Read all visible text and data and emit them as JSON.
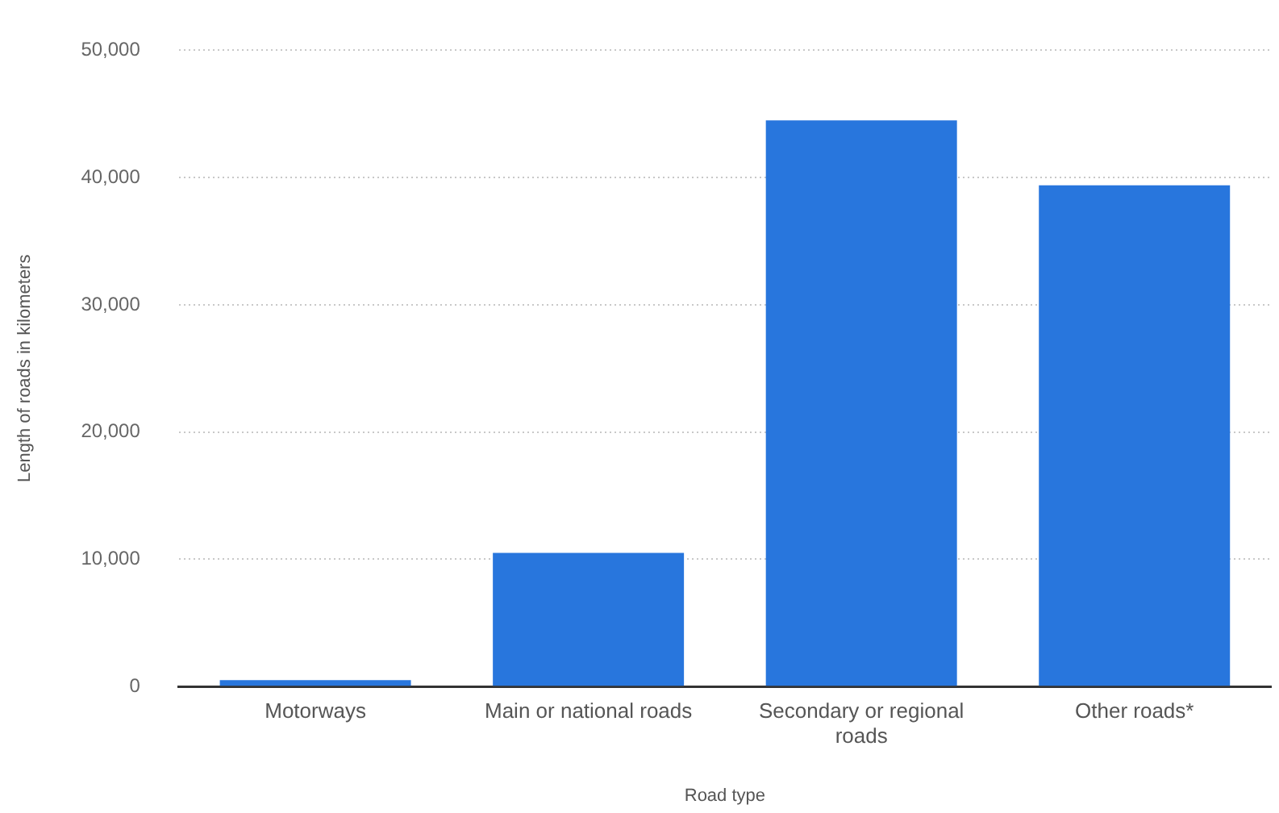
{
  "chart_data": {
    "type": "bar",
    "xlabel": "Road type",
    "ylabel": "Length of roads in kilometers",
    "categories": [
      "Motorways",
      "Main or national roads",
      "Secondary or regional roads",
      "Other roads*"
    ],
    "values": [
      500,
      10500,
      44500,
      39400
    ],
    "color": "#2876dd",
    "ylim": [
      0,
      50000
    ],
    "yticks": [
      0,
      {
        "value": 10000,
        "label": "10,000"
      },
      {
        "value": 20000,
        "label": "20,000"
      },
      {
        "value": 30000,
        "label": "30,000"
      },
      {
        "value": 40000,
        "label": "40,000"
      },
      {
        "value": 50000,
        "label": "50,000"
      }
    ],
    "grid": "y"
  }
}
